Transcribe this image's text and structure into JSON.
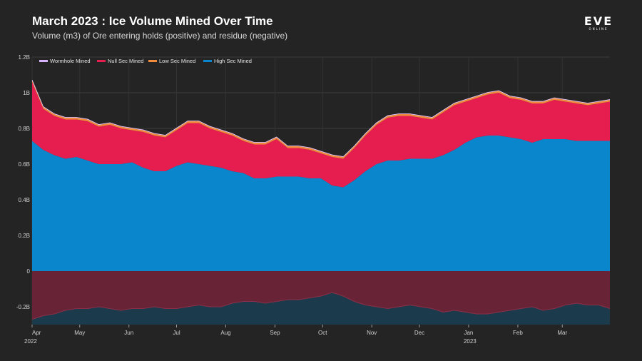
{
  "header": {
    "title": "March 2023 : Ice Volume Mined Over Time",
    "subtitle": "Volume (m3) of Ore entering holds (positive) and residue (negative)",
    "logo_text": "EVE",
    "logo_subtext": "ONLINE"
  },
  "colors": {
    "background": "#242424",
    "high_sec": "#0a87cc",
    "null_sec": "#e61e50",
    "low_sec": "#f08c3c",
    "wormhole": "#d9b3ff",
    "residue_band": "#1b3a4c",
    "residue_fill": "#6e2236"
  },
  "chart_data": {
    "type": "area",
    "title": "March 2023 : Ice Volume Mined Over Time",
    "subtitle": "Volume (m3) of Ore entering holds (positive) and residue (negative)",
    "legend": [
      "Wormhole Mined",
      "Null Sec Mined",
      "Low Sec Mined",
      "High Sec Mined"
    ],
    "legend_position": "top-left",
    "ylim": [
      -0.3,
      1.2
    ],
    "y_ticks": [
      -0.2,
      0,
      0.2,
      0.4,
      0.6,
      0.8,
      1.0,
      1.2
    ],
    "y_tick_labels": [
      "-0.2B",
      "0",
      "0.2B",
      "0.4B",
      "0.6B",
      "0.8B",
      "1B",
      "1.2B"
    ],
    "x_range": [
      0,
      364
    ],
    "x_tick_days": [
      0,
      30,
      61,
      91,
      122,
      153,
      183,
      214,
      244,
      275,
      306,
      334
    ],
    "x_tick_labels": [
      "Apr",
      "May",
      "Jun",
      "Jul",
      "Aug",
      "Sep",
      "Oct",
      "Nov",
      "Dec",
      "Jan",
      "Feb",
      "Mar"
    ],
    "x_year_labels": [
      {
        "day": 0,
        "label": "2022"
      },
      {
        "day": 275,
        "label": "2023"
      }
    ],
    "unit": "billion m3",
    "sample_interval_days": 7,
    "series": [
      {
        "name": "High Sec Mined",
        "values": [
          0.73,
          0.68,
          0.65,
          0.63,
          0.64,
          0.62,
          0.6,
          0.6,
          0.6,
          0.61,
          0.58,
          0.56,
          0.56,
          0.59,
          0.61,
          0.6,
          0.59,
          0.58,
          0.56,
          0.55,
          0.52,
          0.52,
          0.53,
          0.53,
          0.53,
          0.52,
          0.52,
          0.48,
          0.47,
          0.51,
          0.56,
          0.6,
          0.62,
          0.62,
          0.63,
          0.63,
          0.63,
          0.65,
          0.68,
          0.72,
          0.75,
          0.76,
          0.76,
          0.75,
          0.74,
          0.72,
          0.74,
          0.74,
          0.74,
          0.73,
          0.73,
          0.73,
          0.73
        ]
      },
      {
        "name": "Null Sec Mined",
        "values": [
          0.33,
          0.23,
          0.22,
          0.22,
          0.21,
          0.22,
          0.21,
          0.22,
          0.2,
          0.18,
          0.2,
          0.2,
          0.19,
          0.2,
          0.22,
          0.23,
          0.21,
          0.2,
          0.2,
          0.18,
          0.19,
          0.19,
          0.21,
          0.16,
          0.16,
          0.16,
          0.14,
          0.16,
          0.16,
          0.18,
          0.2,
          0.22,
          0.24,
          0.25,
          0.24,
          0.23,
          0.22,
          0.24,
          0.25,
          0.23,
          0.22,
          0.23,
          0.24,
          0.22,
          0.22,
          0.22,
          0.2,
          0.22,
          0.21,
          0.21,
          0.2,
          0.21,
          0.22
        ]
      },
      {
        "name": "Low Sec Mined",
        "values": [
          0.01,
          0.01,
          0.01,
          0.01,
          0.01,
          0.01,
          0.01,
          0.01,
          0.01,
          0.01,
          0.01,
          0.01,
          0.01,
          0.01,
          0.01,
          0.01,
          0.01,
          0.01,
          0.01,
          0.01,
          0.01,
          0.01,
          0.01,
          0.01,
          0.01,
          0.01,
          0.01,
          0.01,
          0.01,
          0.01,
          0.01,
          0.01,
          0.01,
          0.01,
          0.01,
          0.01,
          0.01,
          0.01,
          0.01,
          0.01,
          0.01,
          0.01,
          0.01,
          0.01,
          0.01,
          0.01,
          0.01,
          0.01,
          0.01,
          0.01,
          0.01,
          0.01,
          0.01
        ]
      },
      {
        "name": "Wormhole Mined",
        "values": [
          0.002,
          0.002,
          0.002,
          0.002,
          0.002,
          0.002,
          0.002,
          0.002,
          0.002,
          0.002,
          0.002,
          0.002,
          0.002,
          0.002,
          0.002,
          0.002,
          0.002,
          0.002,
          0.002,
          0.002,
          0.002,
          0.002,
          0.002,
          0.002,
          0.002,
          0.002,
          0.002,
          0.002,
          0.002,
          0.002,
          0.002,
          0.002,
          0.002,
          0.002,
          0.002,
          0.002,
          0.002,
          0.002,
          0.002,
          0.002,
          0.002,
          0.002,
          0.002,
          0.002,
          0.002,
          0.002,
          0.002,
          0.002,
          0.002,
          0.002,
          0.002,
          0.002,
          0.002
        ]
      },
      {
        "name": "Residue",
        "values": [
          -0.27,
          -0.25,
          -0.24,
          -0.22,
          -0.21,
          -0.21,
          -0.2,
          -0.21,
          -0.22,
          -0.21,
          -0.21,
          -0.2,
          -0.21,
          -0.21,
          -0.2,
          -0.19,
          -0.2,
          -0.2,
          -0.18,
          -0.17,
          -0.17,
          -0.18,
          -0.17,
          -0.16,
          -0.16,
          -0.15,
          -0.14,
          -0.12,
          -0.14,
          -0.17,
          -0.19,
          -0.2,
          -0.21,
          -0.2,
          -0.19,
          -0.2,
          -0.21,
          -0.23,
          -0.22,
          -0.23,
          -0.24,
          -0.24,
          -0.23,
          -0.22,
          -0.21,
          -0.2,
          -0.22,
          -0.21,
          -0.19,
          -0.18,
          -0.19,
          -0.19,
          -0.21
        ]
      }
    ]
  }
}
